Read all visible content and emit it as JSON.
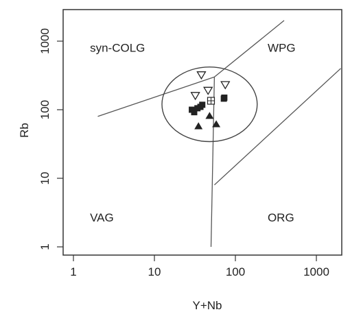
{
  "chart_data": {
    "type": "scatter",
    "title": "",
    "xlabel": "Y+Nb",
    "ylabel": "Rb",
    "x_scale": "log",
    "y_scale": "log",
    "xlim": [
      0.8,
      2000
    ],
    "ylim": [
      0.8,
      2000
    ],
    "grid": false,
    "x_ticks": [
      {
        "value": 1,
        "label": "1"
      },
      {
        "value": 10,
        "label": "10"
      },
      {
        "value": 100,
        "label": "100"
      },
      {
        "value": 1000,
        "label": "1000"
      }
    ],
    "y_ticks": [
      {
        "value": 1,
        "label": "1"
      },
      {
        "value": 10,
        "label": "10"
      },
      {
        "value": 100,
        "label": "100"
      },
      {
        "value": 1000,
        "label": "1000"
      }
    ],
    "region_labels": [
      {
        "text": "syn-COLG",
        "x": 1.6,
        "y": 800
      },
      {
        "text": "WPG",
        "x": 250,
        "y": 800
      },
      {
        "text": "VAG",
        "x": 1.6,
        "y": 2.7
      },
      {
        "text": "ORG",
        "x": 250,
        "y": 2.7
      }
    ],
    "boundary_lines": [
      {
        "name": "syn-COLG / VAG-WPG",
        "points": [
          [
            2,
            80
          ],
          [
            55,
            300
          ]
        ]
      },
      {
        "name": "syn-COLG / WPG",
        "points": [
          [
            55,
            300
          ],
          [
            400,
            2000
          ]
        ]
      },
      {
        "name": "VAG / WPG",
        "points": [
          [
            55,
            300
          ],
          [
            50,
            1
          ]
        ]
      },
      {
        "name": "WPG / ORG",
        "points": [
          [
            55,
            8
          ],
          [
            2000,
            400
          ]
        ]
      }
    ],
    "ellipse_region": {
      "center": [
        48,
        120
      ],
      "x_span": [
        12,
        180
      ],
      "y_span": [
        31,
        380
      ]
    },
    "series": [
      {
        "marker": "open-triangle-down",
        "x": [
          38,
          32,
          46,
          75
        ],
        "y": [
          320,
          160,
          190,
          230
        ]
      },
      {
        "marker": "filled-square",
        "x": [
          29,
          31,
          34,
          37,
          39,
          72,
          73
        ],
        "y": [
          100,
          92,
          105,
          110,
          118,
          145,
          150
        ]
      },
      {
        "marker": "crossed-square",
        "x": [
          50
        ],
        "y": [
          135
        ]
      },
      {
        "marker": "filled-triangle-up",
        "x": [
          35,
          48,
          58
        ],
        "y": [
          58,
          82,
          62
        ]
      }
    ]
  }
}
